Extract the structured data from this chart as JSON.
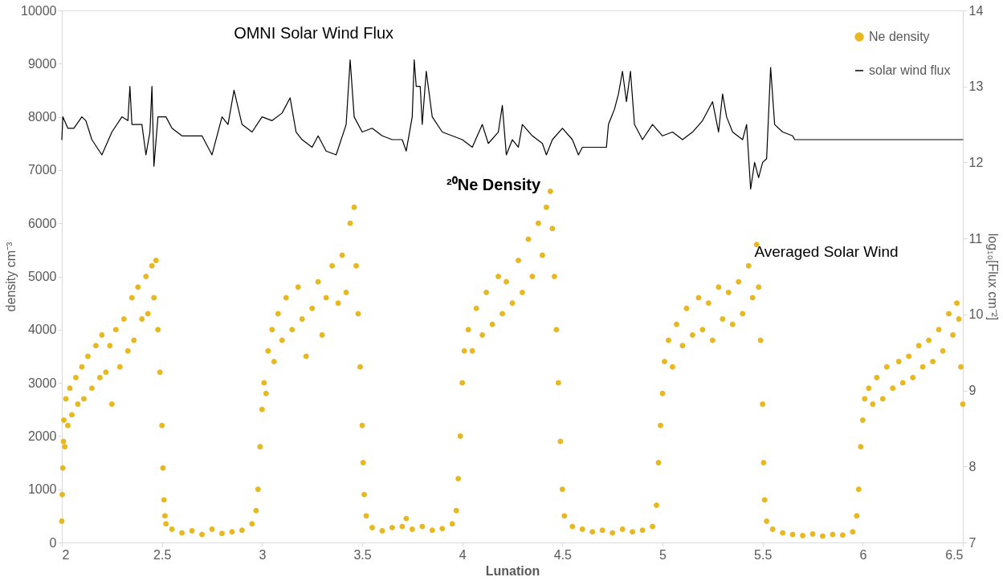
{
  "chart_data": {
    "type": "scatter",
    "xlabel": "Lunation",
    "ylabel": "density cm⁻³",
    "y2label": "log₁₀[Flux cm⁻²]",
    "annotations": [
      "OMNI Solar Wind Flux",
      "²⁰Ne Density",
      "Averaged Solar Wind"
    ],
    "xlim": [
      2,
      6.5
    ],
    "xticks": [
      2,
      2.5,
      3,
      3.5,
      4,
      4.5,
      5,
      5.5,
      6,
      6.5
    ],
    "ylim": [
      0,
      10000
    ],
    "yticks": [
      0,
      1000,
      2000,
      3000,
      4000,
      5000,
      6000,
      7000,
      8000,
      9000,
      10000
    ],
    "y2lim": [
      7,
      14
    ],
    "y2ticks": [
      7,
      8,
      9,
      10,
      11,
      12,
      13,
      14
    ],
    "grid": false,
    "legend": "top right",
    "marker": "circle",
    "series": [
      {
        "name": "Ne density",
        "color": "#e8b820",
        "x": [
          2.0,
          2.002,
          2.005,
          2.008,
          2.01,
          2.015,
          2.02,
          2.03,
          2.04,
          2.05,
          2.07,
          2.08,
          2.1,
          2.11,
          2.13,
          2.15,
          2.17,
          2.19,
          2.2,
          2.22,
          2.24,
          2.25,
          2.27,
          2.29,
          2.31,
          2.33,
          2.35,
          2.36,
          2.38,
          2.4,
          2.42,
          2.43,
          2.45,
          2.46,
          2.47,
          2.48,
          2.49,
          2.5,
          2.505,
          2.51,
          2.515,
          2.52,
          2.55,
          2.6,
          2.65,
          2.7,
          2.75,
          2.8,
          2.85,
          2.9,
          2.95,
          2.97,
          2.98,
          2.99,
          3.0,
          3.01,
          3.02,
          3.03,
          3.05,
          3.06,
          3.08,
          3.1,
          3.12,
          3.15,
          3.18,
          3.2,
          3.22,
          3.25,
          3.28,
          3.3,
          3.32,
          3.35,
          3.38,
          3.4,
          3.42,
          3.44,
          3.46,
          3.47,
          3.48,
          3.49,
          3.5,
          3.505,
          3.51,
          3.52,
          3.55,
          3.6,
          3.65,
          3.7,
          3.72,
          3.75,
          3.8,
          3.85,
          3.9,
          3.95,
          3.97,
          3.98,
          3.99,
          4.0,
          4.01,
          4.03,
          4.05,
          4.07,
          4.1,
          4.12,
          4.15,
          4.18,
          4.2,
          4.22,
          4.25,
          4.28,
          4.3,
          4.33,
          4.35,
          4.38,
          4.4,
          4.42,
          4.44,
          4.45,
          4.46,
          4.47,
          4.48,
          4.49,
          4.5,
          4.51,
          4.55,
          4.6,
          4.65,
          4.7,
          4.75,
          4.8,
          4.85,
          4.9,
          4.95,
          4.97,
          4.98,
          4.99,
          5.0,
          5.01,
          5.03,
          5.05,
          5.07,
          5.1,
          5.12,
          5.15,
          5.18,
          5.2,
          5.23,
          5.25,
          5.28,
          5.3,
          5.33,
          5.35,
          5.38,
          5.4,
          5.43,
          5.45,
          5.47,
          5.48,
          5.49,
          5.5,
          5.505,
          5.51,
          5.52,
          5.55,
          5.6,
          5.65,
          5.7,
          5.75,
          5.8,
          5.85,
          5.9,
          5.95,
          5.97,
          5.98,
          5.99,
          6.0,
          6.01,
          6.03,
          6.05,
          6.07,
          6.1,
          6.12,
          6.15,
          6.18,
          6.2,
          6.23,
          6.25,
          6.28,
          6.3,
          6.33,
          6.35,
          6.38,
          6.4,
          6.43,
          6.45,
          6.47,
          6.48,
          6.49,
          6.5
        ],
        "values": [
          400,
          900,
          1400,
          1900,
          2300,
          1800,
          2700,
          2200,
          2900,
          2400,
          3100,
          2600,
          3300,
          2700,
          3500,
          2900,
          3700,
          3100,
          3900,
          3200,
          3700,
          2600,
          4000,
          3300,
          4200,
          3600,
          4600,
          3800,
          4800,
          4200,
          5000,
          4300,
          5200,
          4600,
          5300,
          4000,
          3200,
          2200,
          1400,
          800,
          500,
          350,
          250,
          180,
          220,
          150,
          250,
          170,
          200,
          230,
          350,
          600,
          1000,
          1800,
          2500,
          3000,
          2800,
          3600,
          4000,
          3400,
          4300,
          3800,
          4600,
          4000,
          4800,
          4200,
          3500,
          4400,
          4900,
          3900,
          4600,
          5200,
          4500,
          5400,
          4700,
          6000,
          6300,
          5200,
          4300,
          3300,
          2200,
          1500,
          900,
          500,
          280,
          220,
          280,
          300,
          450,
          250,
          300,
          230,
          260,
          350,
          600,
          1200,
          2000,
          3000,
          3600,
          4000,
          3600,
          4400,
          3900,
          4700,
          4100,
          5000,
          4300,
          4900,
          4500,
          5300,
          4700,
          5700,
          5000,
          6000,
          5400,
          6300,
          6600,
          5900,
          5000,
          4000,
          3000,
          1900,
          1000,
          500,
          300,
          250,
          200,
          230,
          180,
          250,
          200,
          230,
          300,
          700,
          1500,
          2200,
          2800,
          3400,
          3800,
          3300,
          4100,
          3700,
          4400,
          3900,
          4600,
          4000,
          4500,
          3800,
          4800,
          4200,
          4700,
          4100,
          4900,
          4300,
          5200,
          4600,
          5600,
          4800,
          3800,
          2600,
          1500,
          800,
          400,
          250,
          180,
          150,
          130,
          160,
          120,
          150,
          140,
          200,
          500,
          1000,
          1800,
          2300,
          2700,
          2900,
          2600,
          3100,
          2700,
          3300,
          2900,
          3400,
          3000,
          3500,
          3100,
          3700,
          3300,
          3800,
          3400,
          4000,
          3600,
          4300,
          3900,
          4500,
          4200,
          3300,
          2600
        ]
      },
      {
        "name": "solar wind flux",
        "type": "line",
        "axis": "y2",
        "color": "#000000",
        "marker": "none",
        "x": [
          2.0,
          2.005,
          2.03,
          2.06,
          2.1,
          2.12,
          2.15,
          2.2,
          2.25,
          2.3,
          2.33,
          2.34,
          2.35,
          2.4,
          2.42,
          2.44,
          2.45,
          2.46,
          2.48,
          2.52,
          2.55,
          2.6,
          2.7,
          2.75,
          2.8,
          2.83,
          2.86,
          2.9,
          2.95,
          3.0,
          3.05,
          3.1,
          3.14,
          3.17,
          3.2,
          3.25,
          3.28,
          3.32,
          3.37,
          3.42,
          3.44,
          3.46,
          3.5,
          3.55,
          3.6,
          3.65,
          3.7,
          3.72,
          3.75,
          3.76,
          3.77,
          3.79,
          3.8,
          3.82,
          3.85,
          3.9,
          3.95,
          4.0,
          4.05,
          4.1,
          4.13,
          4.18,
          4.2,
          4.22,
          4.25,
          4.28,
          4.3,
          4.35,
          4.4,
          4.42,
          4.45,
          4.5,
          4.55,
          4.58,
          4.6,
          4.72,
          4.73,
          4.76,
          4.78,
          4.8,
          4.82,
          4.84,
          4.86,
          4.9,
          4.95,
          5.0,
          5.05,
          5.1,
          5.15,
          5.2,
          5.25,
          5.28,
          5.3,
          5.32,
          5.35,
          5.4,
          5.42,
          5.44,
          5.46,
          5.48,
          5.5,
          5.52,
          5.54,
          5.56,
          5.6,
          5.65,
          5.66,
          6.5
        ],
        "values": [
          12.3,
          12.6,
          12.45,
          12.45,
          12.6,
          12.55,
          12.3,
          12.1,
          12.4,
          12.6,
          12.55,
          13.0,
          12.5,
          12.5,
          12.1,
          12.4,
          13.0,
          11.95,
          12.6,
          12.6,
          12.45,
          12.35,
          12.35,
          12.1,
          12.6,
          12.5,
          12.95,
          12.5,
          12.4,
          12.6,
          12.55,
          12.65,
          12.85,
          12.4,
          12.3,
          12.2,
          12.35,
          12.15,
          12.1,
          12.5,
          13.35,
          12.6,
          12.4,
          12.45,
          12.35,
          12.3,
          12.3,
          12.15,
          12.6,
          13.35,
          13.0,
          13.0,
          12.5,
          13.2,
          12.6,
          12.4,
          12.35,
          12.3,
          12.2,
          12.5,
          12.25,
          12.4,
          12.75,
          12.1,
          12.3,
          12.2,
          12.5,
          12.35,
          12.25,
          12.1,
          12.3,
          12.45,
          12.3,
          12.1,
          12.2,
          12.2,
          12.5,
          12.7,
          12.9,
          13.2,
          12.8,
          13.2,
          12.5,
          12.3,
          12.5,
          12.35,
          12.4,
          12.3,
          12.4,
          12.55,
          12.8,
          12.4,
          12.9,
          12.6,
          12.4,
          12.3,
          12.5,
          11.65,
          12.0,
          11.8,
          12.0,
          12.05,
          13.25,
          12.5,
          12.4,
          12.35,
          12.3,
          12.3
        ]
      }
    ]
  }
}
